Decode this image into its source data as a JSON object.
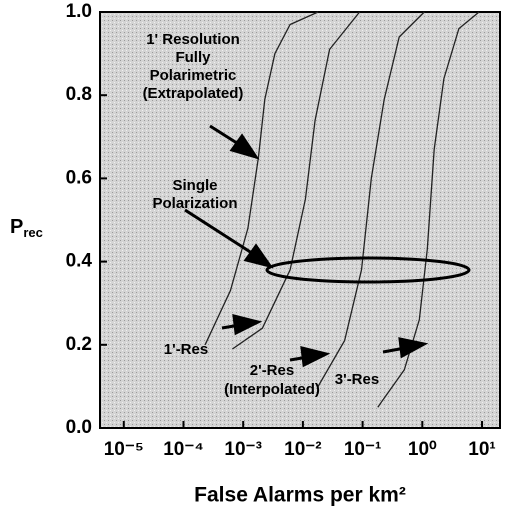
{
  "chart_data": {
    "type": "line",
    "xlabel": "False Alarms per km²",
    "ylabel": {
      "main": "P",
      "sub": "rec"
    },
    "log_x": true,
    "xlim": [
      4e-06,
      20
    ],
    "ylim": [
      0,
      1
    ],
    "xticks": [
      {
        "value": 1e-05,
        "label": "10⁻⁵"
      },
      {
        "value": 0.0001,
        "label": "10⁻⁴"
      },
      {
        "value": 0.001,
        "label": "10⁻³"
      },
      {
        "value": 0.01,
        "label": "10⁻²"
      },
      {
        "value": 0.1,
        "label": "10⁻¹"
      },
      {
        "value": 1,
        "label": "10⁰"
      },
      {
        "value": 10,
        "label": "10¹"
      }
    ],
    "yticks": [
      {
        "value": 0,
        "label": "0.0"
      },
      0.2,
      0.4,
      0.6,
      0.8,
      {
        "value": 1,
        "label": "1.0"
      }
    ],
    "series": [
      {
        "color": "#222222",
        "x": [
          0.00023,
          0.00061,
          0.0012,
          0.0018,
          0.0023,
          0.0034,
          0.0061,
          0.018
        ],
        "values": [
          0.2,
          0.33,
          0.48,
          0.65,
          0.79,
          0.9,
          0.97,
          1.0
        ]
      },
      {
        "color": "#222222",
        "x": [
          0.00066,
          0.0021,
          0.0061,
          0.011,
          0.016,
          0.028,
          0.089
        ],
        "values": [
          0.19,
          0.24,
          0.38,
          0.55,
          0.74,
          0.91,
          1.0
        ]
      },
      {
        "color": "#222222",
        "x": [
          0.018,
          0.05,
          0.096,
          0.14,
          0.23,
          0.41,
          1.08
        ],
        "values": [
          0.1,
          0.21,
          0.38,
          0.6,
          0.79,
          0.94,
          1.0
        ]
      },
      {
        "color": "#222222",
        "x": [
          0.18,
          0.5,
          0.89,
          1.21,
          1.58,
          2.3,
          4.1,
          8.9
        ],
        "values": [
          0.05,
          0.14,
          0.26,
          0.43,
          0.67,
          0.84,
          0.96,
          1.0
        ]
      }
    ],
    "annotations": [
      {
        "lines": [
          "1' Resolution",
          "Fully",
          "Polarimetric",
          "(Extrapolated)"
        ]
      },
      {
        "lines": [
          "Single",
          "Polarization"
        ]
      },
      {
        "lines": [
          "1'-Res"
        ]
      },
      {
        "lines": [
          "2'-Res",
          "(Interpolated)"
        ]
      },
      {
        "lines": [
          "3'-Res"
        ]
      }
    ]
  }
}
